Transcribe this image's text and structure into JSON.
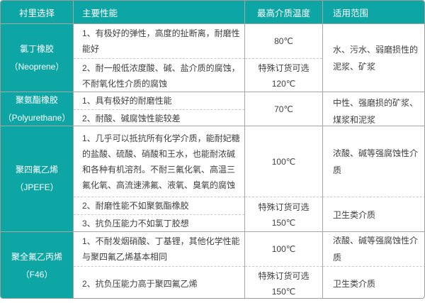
{
  "table": {
    "headers": {
      "lining": "衬里选择",
      "performance": "主要性能",
      "max_temp": "最高介质温度",
      "scope": "适用范围"
    },
    "sections": [
      {
        "material": "氯丁橡胶",
        "material_sub": "（Neoprene）",
        "perf": [
          "1、有极好的弹性，高度的扯断离，耐磨性能好",
          "2、耐一般低浓度酸、碱、盐介质的腐蚀，不耐氧化性介质的腐蚀"
        ],
        "temps": [
          {
            "note": "",
            "value": "80℃"
          },
          {
            "note": "特殊订货可选",
            "value": "120℃"
          }
        ],
        "scopes": [
          "水、污水、弱磨损性的泥浆、矿浆"
        ]
      },
      {
        "material": "聚氨酯橡胶",
        "material_sub": "（Polyurethane）",
        "perf": [
          "1、具有极好的耐磨性能",
          "2、耐酸、碱腐蚀性能较差"
        ],
        "temps": [
          {
            "note": "",
            "value": "70℃"
          }
        ],
        "scopes": [
          "中性、强磨损的矿浆、煤浆和泥浆"
        ]
      },
      {
        "material": "聚四氟乙烯",
        "material_sub": "（JPEFE）",
        "perf": [
          "1、几乎可以抵抗所有化学介质，能耐妃糖的盐酸、硫酸、硝酸和王水，也能耐浓碱和各种有机溶剂。不耐三氟化氧、高温三氟化氧、高流速沸氟、液氧、臭氧的腐蚀",
          "2、耐磨性能不如聚氨酯橡胶",
          "3、抗负压能力不如氯丁胶想"
        ],
        "temps": [
          {
            "note": "",
            "value": "100℃"
          },
          {
            "note": "特殊订货可选",
            "value": "150℃"
          }
        ],
        "scopes": [
          "浓酸、碱等强腐蚀性介质",
          "卫生类介质"
        ]
      },
      {
        "material": "聚全氟乙丙烯",
        "material_sub": "（F46）",
        "perf": [
          "1、不耐发烟硝酸、丁基锂，其他化学性能与聚四氟乙烯基本相同",
          "2、抗负压能力高于聚四氟乙烯"
        ],
        "temps": [
          {
            "note": "",
            "value": "100℃"
          },
          {
            "note": "特殊订货可选",
            "value": "150℃"
          }
        ],
        "scopes": [
          "浓酸、碱等强腐蚀性介质",
          "卫生类介质"
        ]
      }
    ],
    "colors": {
      "accent_teal": "#0ea5a5",
      "border_solid": "#a6a6a6",
      "border_dashed": "#c9c9c9",
      "text": "#3f3f3f"
    }
  }
}
